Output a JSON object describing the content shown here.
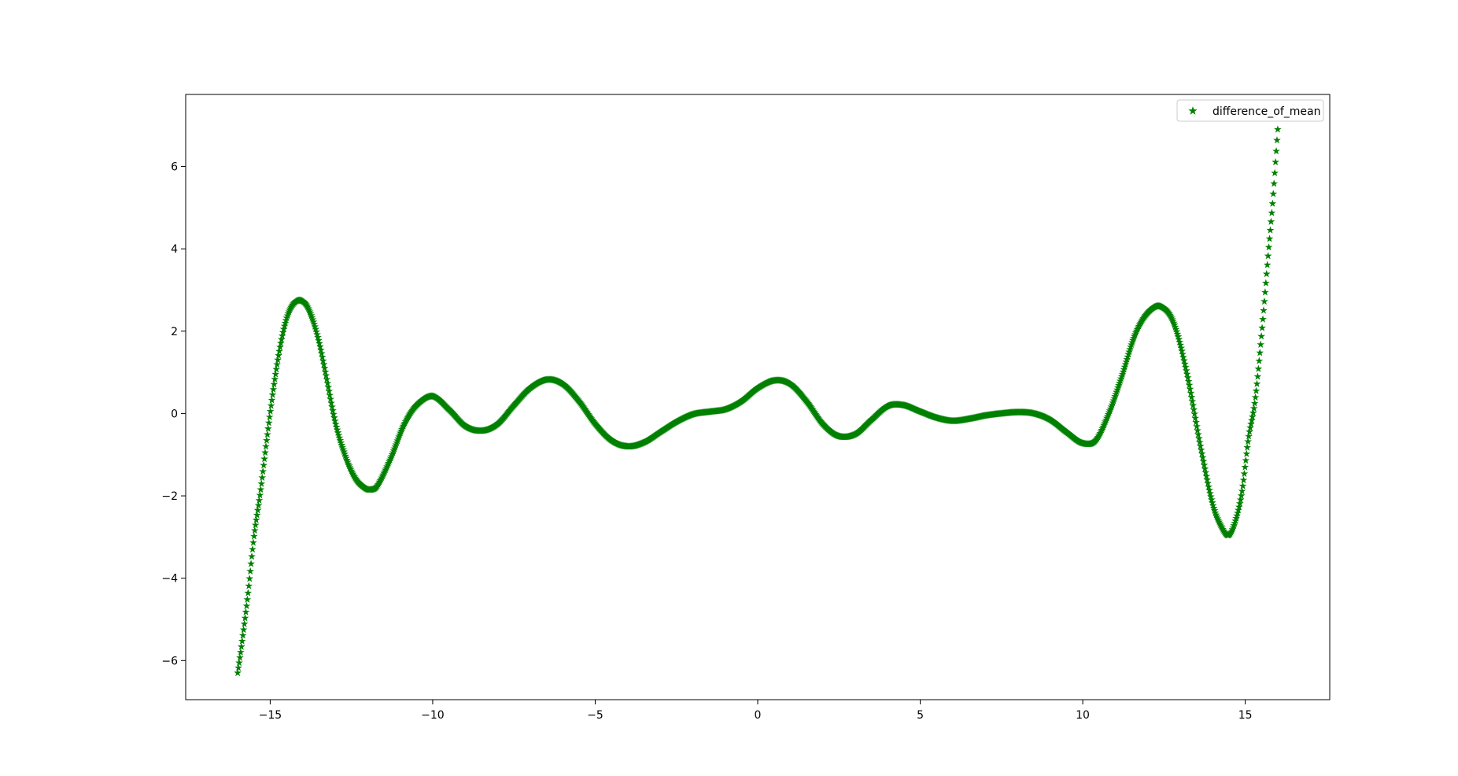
{
  "chart_data": {
    "type": "scatter",
    "marker": "star",
    "marker_color": "#008000",
    "xlim": [
      -17.6,
      17.6
    ],
    "ylim": [
      -6.95,
      7.75
    ],
    "x_ticks": [
      -15,
      -10,
      -5,
      0,
      5,
      10,
      15
    ],
    "x_tick_labels": [
      "−15",
      "−10",
      "−5",
      "0",
      "5",
      "10",
      "15"
    ],
    "y_ticks": [
      -6,
      -4,
      -2,
      0,
      2,
      4,
      6
    ],
    "y_tick_labels": [
      "−6",
      "−4",
      "−2",
      "0",
      "2",
      "4",
      "6"
    ],
    "grid": false,
    "legend": {
      "position": "top-right",
      "entries": [
        "difference_of_mean"
      ]
    },
    "series": [
      {
        "name": "difference_of_mean",
        "x_range": [
          -16,
          16
        ],
        "points": [
          [
            -16.0,
            -6.3
          ],
          [
            -15.9,
            -5.75
          ],
          [
            -15.7,
            -4.5
          ],
          [
            -15.5,
            -3.0
          ],
          [
            -15.3,
            -1.9
          ],
          [
            -15.1,
            -0.6
          ],
          [
            -14.9,
            0.6
          ],
          [
            -14.7,
            1.6
          ],
          [
            -14.5,
            2.3
          ],
          [
            -14.3,
            2.65
          ],
          [
            -14.1,
            2.75
          ],
          [
            -13.9,
            2.65
          ],
          [
            -13.7,
            2.3
          ],
          [
            -13.5,
            1.75
          ],
          [
            -13.3,
            1.0
          ],
          [
            -13.0,
            -0.2
          ],
          [
            -12.7,
            -1.0
          ],
          [
            -12.4,
            -1.55
          ],
          [
            -12.1,
            -1.8
          ],
          [
            -11.9,
            -1.85
          ],
          [
            -11.7,
            -1.75
          ],
          [
            -11.3,
            -1.1
          ],
          [
            -10.9,
            -0.3
          ],
          [
            -10.5,
            0.2
          ],
          [
            -10.0,
            0.42
          ],
          [
            -9.5,
            0.1
          ],
          [
            -9.0,
            -0.3
          ],
          [
            -8.5,
            -0.42
          ],
          [
            -8.0,
            -0.25
          ],
          [
            -7.5,
            0.2
          ],
          [
            -7.0,
            0.62
          ],
          [
            -6.5,
            0.82
          ],
          [
            -6.0,
            0.72
          ],
          [
            -5.5,
            0.3
          ],
          [
            -5.0,
            -0.25
          ],
          [
            -4.5,
            -0.65
          ],
          [
            -4.0,
            -0.8
          ],
          [
            -3.5,
            -0.7
          ],
          [
            -3.0,
            -0.45
          ],
          [
            -2.5,
            -0.2
          ],
          [
            -2.0,
            -0.02
          ],
          [
            -1.5,
            0.04
          ],
          [
            -1.0,
            0.1
          ],
          [
            -0.5,
            0.3
          ],
          [
            0.0,
            0.62
          ],
          [
            0.5,
            0.8
          ],
          [
            1.0,
            0.72
          ],
          [
            1.5,
            0.3
          ],
          [
            2.0,
            -0.25
          ],
          [
            2.5,
            -0.55
          ],
          [
            3.0,
            -0.5
          ],
          [
            3.5,
            -0.15
          ],
          [
            4.0,
            0.18
          ],
          [
            4.5,
            0.2
          ],
          [
            5.0,
            0.05
          ],
          [
            5.5,
            -0.1
          ],
          [
            6.0,
            -0.18
          ],
          [
            6.5,
            -0.13
          ],
          [
            7.0,
            -0.05
          ],
          [
            7.5,
            0.0
          ],
          [
            8.0,
            0.03
          ],
          [
            8.5,
            0.0
          ],
          [
            9.0,
            -0.15
          ],
          [
            9.5,
            -0.45
          ],
          [
            10.0,
            -0.72
          ],
          [
            10.4,
            -0.65
          ],
          [
            10.8,
            0.0
          ],
          [
            11.2,
            0.9
          ],
          [
            11.6,
            1.9
          ],
          [
            12.0,
            2.45
          ],
          [
            12.4,
            2.6
          ],
          [
            12.8,
            2.2
          ],
          [
            13.2,
            1.0
          ],
          [
            13.6,
            -0.7
          ],
          [
            14.0,
            -2.2
          ],
          [
            14.3,
            -2.8
          ],
          [
            14.5,
            -2.95
          ],
          [
            14.7,
            -2.6
          ],
          [
            14.9,
            -1.9
          ],
          [
            15.1,
            -0.6
          ],
          [
            15.3,
            0.3
          ],
          [
            15.5,
            1.9
          ],
          [
            15.7,
            3.8
          ],
          [
            15.85,
            5.2
          ],
          [
            16.0,
            6.9
          ]
        ]
      }
    ]
  }
}
